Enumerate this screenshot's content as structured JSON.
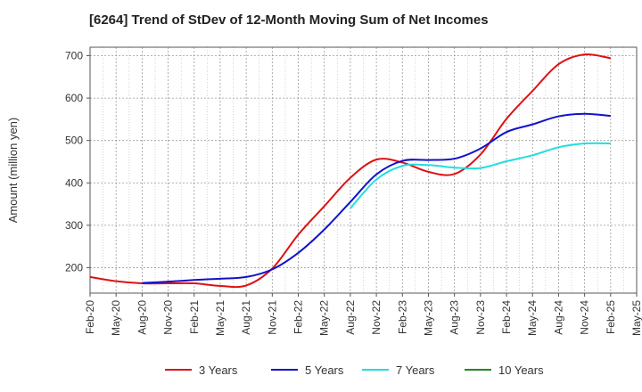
{
  "chart_data": {
    "type": "line",
    "title": "[6264]  Trend of StDev of 12-Month Moving Sum of Net Incomes",
    "xlabel": "",
    "ylabel": "Amount (million yen)",
    "ylim": [
      140,
      720
    ],
    "yticks": [
      200,
      300,
      400,
      500,
      600,
      700
    ],
    "x_categories": [
      "Feb-20",
      "May-20",
      "Aug-20",
      "Nov-20",
      "Feb-21",
      "May-21",
      "Aug-21",
      "Nov-21",
      "Feb-22",
      "May-22",
      "Aug-22",
      "Nov-22",
      "Feb-23",
      "May-23",
      "Aug-23",
      "Nov-23",
      "Feb-24",
      "May-24",
      "Aug-24",
      "Nov-24",
      "Feb-25",
      "May-25"
    ],
    "grid": true,
    "legend_position": "bottom",
    "series": [
      {
        "name": "3 Years",
        "color": "#dd1111",
        "x": [
          "Feb-20",
          "May-20",
          "Aug-20",
          "Nov-20",
          "Feb-21",
          "May-21",
          "Aug-21",
          "Nov-21",
          "Feb-22",
          "May-22",
          "Aug-22",
          "Nov-22",
          "Feb-23",
          "May-23",
          "Aug-23",
          "Nov-23",
          "Feb-24",
          "May-24",
          "Aug-24",
          "Nov-24",
          "Feb-25"
        ],
        "values": [
          178,
          168,
          163,
          163,
          163,
          157,
          158,
          198,
          278,
          345,
          412,
          455,
          448,
          426,
          421,
          467,
          551,
          617,
          680,
          703,
          694
        ]
      },
      {
        "name": "5 Years",
        "color": "#1111cc",
        "x": [
          "Aug-20",
          "Nov-20",
          "Feb-21",
          "May-21",
          "Aug-21",
          "Nov-21",
          "Feb-22",
          "May-22",
          "Aug-22",
          "Nov-22",
          "Feb-23",
          "May-23",
          "Aug-23",
          "Nov-23",
          "Feb-24",
          "May-24",
          "Aug-24",
          "Nov-24",
          "Feb-25"
        ],
        "values": [
          164,
          167,
          171,
          174,
          178,
          196,
          235,
          290,
          355,
          420,
          452,
          454,
          457,
          481,
          520,
          538,
          557,
          563,
          558
        ]
      },
      {
        "name": "7 Years",
        "color": "#22dddd",
        "x": [
          "Aug-22",
          "Nov-22",
          "Feb-23",
          "May-23",
          "Aug-23",
          "Nov-23",
          "Feb-24",
          "May-24",
          "Aug-24",
          "Nov-24",
          "Feb-25"
        ],
        "values": [
          340,
          408,
          440,
          442,
          436,
          435,
          451,
          465,
          484,
          493,
          493
        ]
      },
      {
        "name": "10 Years",
        "color": "#228822",
        "x": [],
        "values": []
      }
    ]
  }
}
